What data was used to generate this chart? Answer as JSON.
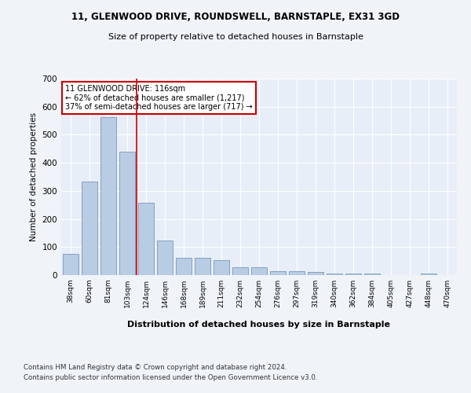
{
  "title1": "11, GLENWOOD DRIVE, ROUNDSWELL, BARNSTAPLE, EX31 3GD",
  "title2": "Size of property relative to detached houses in Barnstaple",
  "xlabel": "Distribution of detached houses by size in Barnstaple",
  "ylabel": "Number of detached properties",
  "categories": [
    "38sqm",
    "60sqm",
    "81sqm",
    "103sqm",
    "124sqm",
    "146sqm",
    "168sqm",
    "189sqm",
    "211sqm",
    "232sqm",
    "254sqm",
    "276sqm",
    "297sqm",
    "319sqm",
    "340sqm",
    "362sqm",
    "384sqm",
    "405sqm",
    "427sqm",
    "448sqm",
    "470sqm"
  ],
  "values": [
    75,
    333,
    563,
    440,
    258,
    122,
    63,
    63,
    53,
    28,
    28,
    15,
    15,
    12,
    5,
    5,
    5,
    0,
    0,
    5,
    0
  ],
  "bar_color": "#b8cce4",
  "bar_edge_color": "#7799bb",
  "red_line_x": 3.5,
  "annotation_line1": "11 GLENWOOD DRIVE: 116sqm",
  "annotation_line2": "← 62% of detached houses are smaller (1,217)",
  "annotation_line3": "37% of semi-detached houses are larger (717) →",
  "annotation_box_color": "#ffffff",
  "annotation_box_edge": "#cc0000",
  "footer1": "Contains HM Land Registry data © Crown copyright and database right 2024.",
  "footer2": "Contains public sector information licensed under the Open Government Licence v3.0.",
  "background_color": "#e8eef7",
  "fig_background": "#f0f4f8",
  "ylim": [
    0,
    700
  ],
  "yticks": [
    0,
    100,
    200,
    300,
    400,
    500,
    600,
    700
  ]
}
